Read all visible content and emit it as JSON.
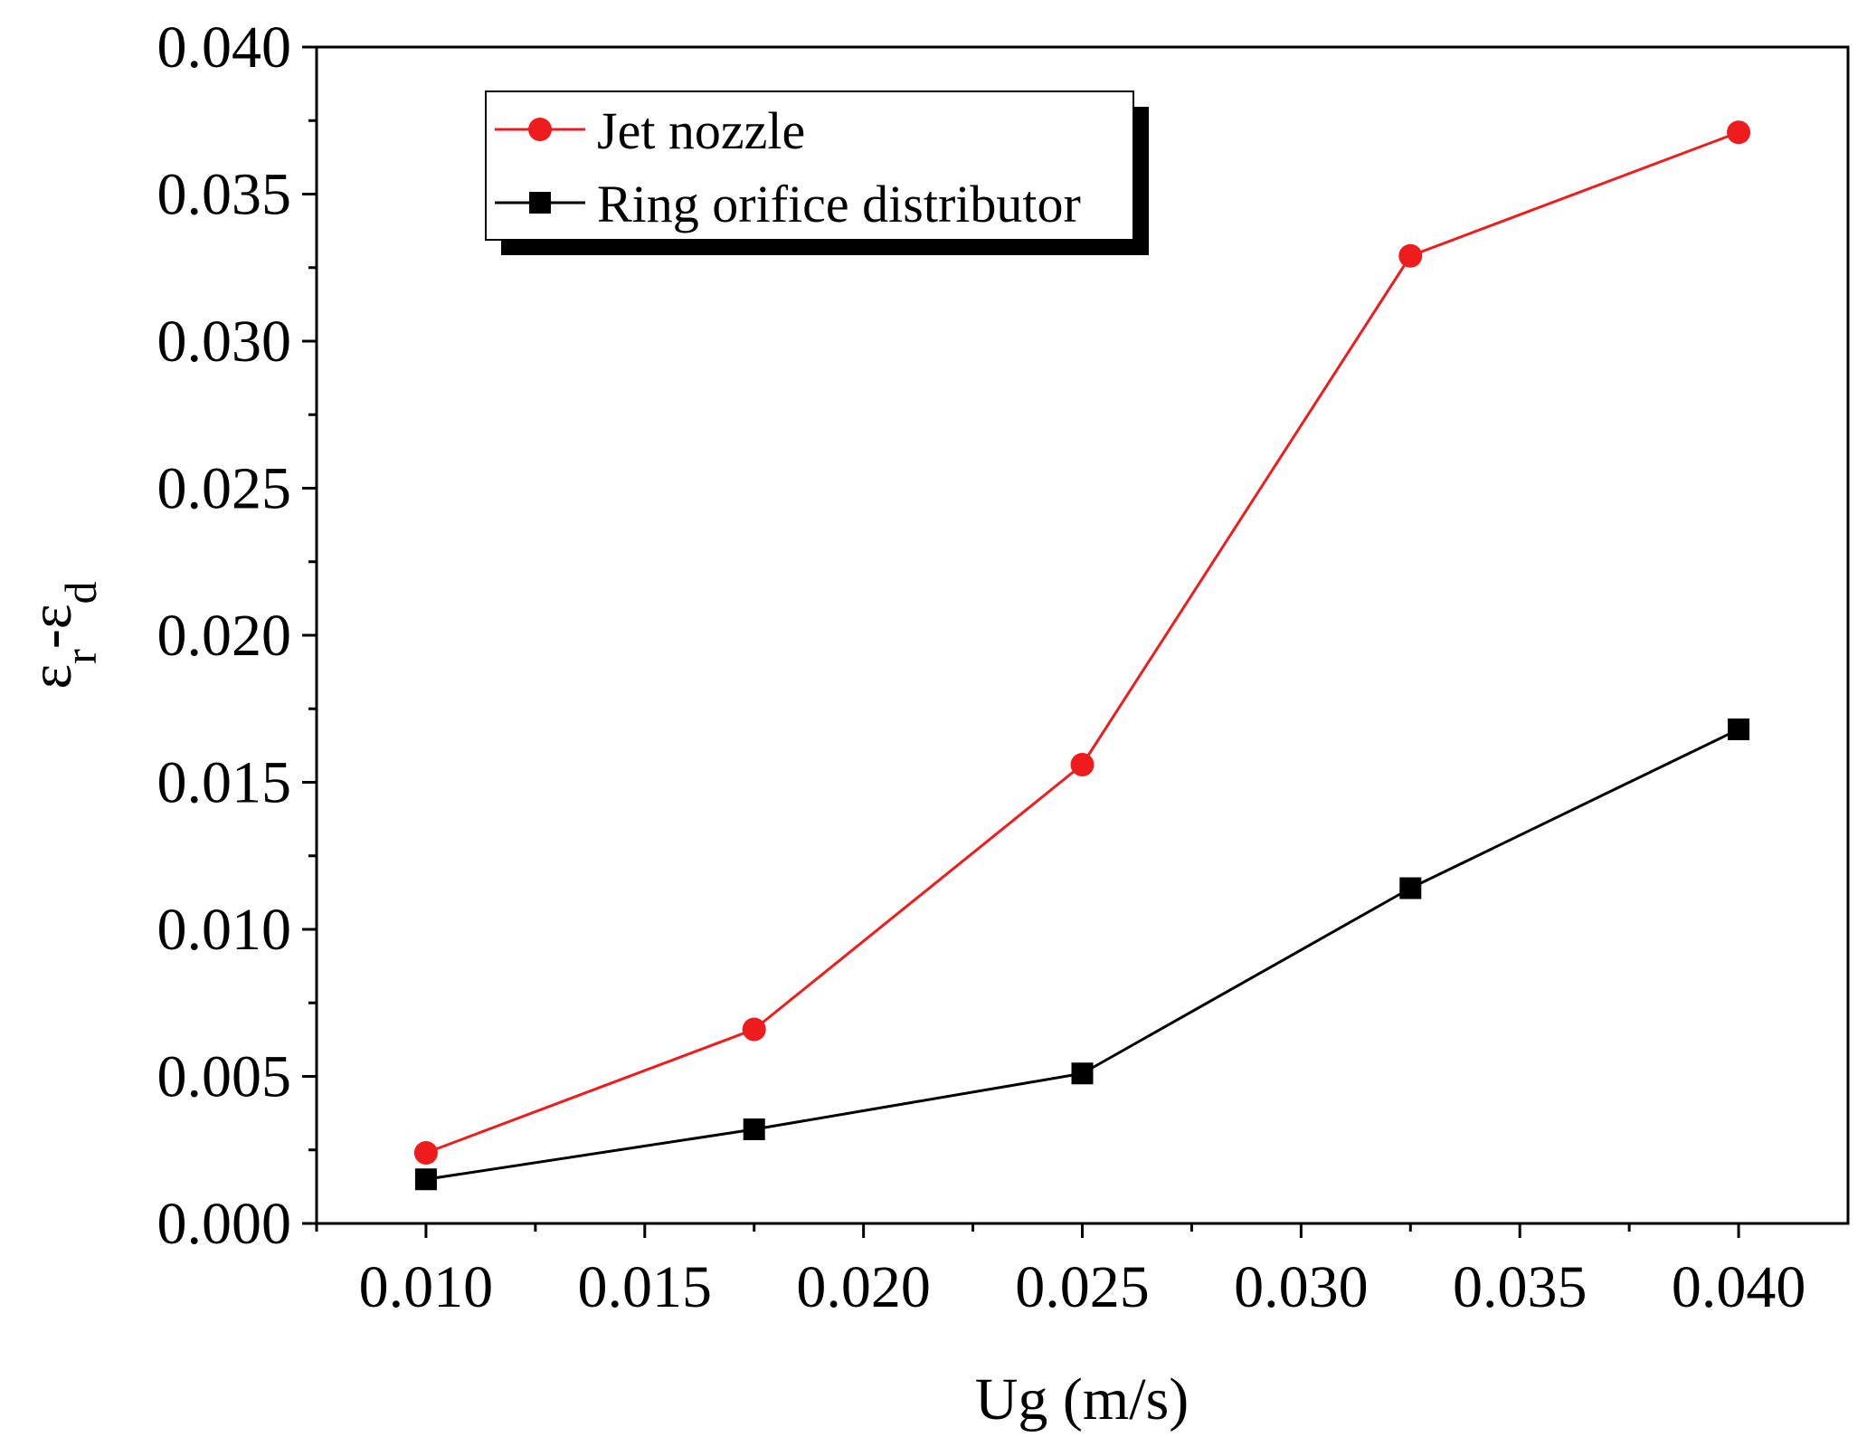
{
  "chart_data": {
    "type": "line",
    "title": "",
    "xlabel": "Ug (m/s)",
    "ylabel": {
      "base": "ε",
      "sub1": "r",
      "sep": "-ε",
      "sub2": "d"
    },
    "xlim": [
      0.0075,
      0.0425
    ],
    "ylim": [
      0.0,
      0.04
    ],
    "x_ticks": [
      0.01,
      0.015,
      0.02,
      0.025,
      0.03,
      0.035,
      0.04
    ],
    "x_tick_labels": [
      "0.010",
      "0.015",
      "0.020",
      "0.025",
      "0.030",
      "0.035",
      "0.040"
    ],
    "y_ticks": [
      0.0,
      0.005,
      0.01,
      0.015,
      0.02,
      0.025,
      0.03,
      0.035,
      0.04
    ],
    "y_tick_labels": [
      "0.000",
      "0.005",
      "0.010",
      "0.015",
      "0.020",
      "0.025",
      "0.030",
      "0.035",
      "0.040"
    ],
    "grid": false,
    "legend_position": "top-left",
    "series": [
      {
        "name": "Jet nozzle",
        "color": "#ee1c1c",
        "marker": "circle",
        "x": [
          0.01,
          0.0175,
          0.025,
          0.0325,
          0.04
        ],
        "values": [
          0.0024,
          0.0066,
          0.0156,
          0.0329,
          0.0371
        ]
      },
      {
        "name": "Ring orifice distributor",
        "color": "#000000",
        "marker": "square",
        "x": [
          0.01,
          0.0175,
          0.025,
          0.0325,
          0.04
        ],
        "values": [
          0.0015,
          0.0032,
          0.0051,
          0.0114,
          0.0168
        ]
      }
    ]
  }
}
